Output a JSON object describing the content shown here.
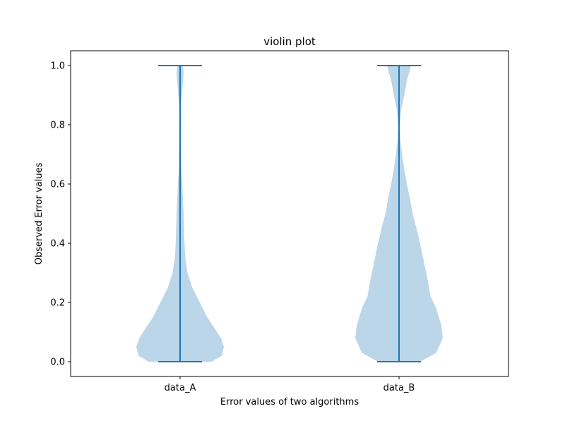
{
  "chart_data": {
    "type": "violin",
    "title": "violin plot",
    "xlabel": "Error values of two algorithms",
    "ylabel": "Observed Error values",
    "categories": [
      "data_A",
      "data_B"
    ],
    "ylim": [
      -0.05,
      1.05
    ],
    "yticks": [
      0.0,
      0.2,
      0.4,
      0.6,
      0.8,
      1.0
    ],
    "ytick_labels": [
      "0.0",
      "0.2",
      "0.4",
      "0.6",
      "0.8",
      "1.0"
    ],
    "grid": false,
    "colors": {
      "body": "#1f77b4",
      "body_alpha": 0.3,
      "lines": "#1f77b4"
    },
    "series": [
      {
        "category": "data_A",
        "min": 0.0,
        "max": 1.0,
        "density_profile": [
          [
            0.0,
            0.72
          ],
          [
            0.02,
            0.95
          ],
          [
            0.05,
            1.0
          ],
          [
            0.08,
            0.93
          ],
          [
            0.11,
            0.8
          ],
          [
            0.15,
            0.62
          ],
          [
            0.2,
            0.45
          ],
          [
            0.25,
            0.28
          ],
          [
            0.3,
            0.17
          ],
          [
            0.35,
            0.12
          ],
          [
            0.4,
            0.1
          ],
          [
            0.5,
            0.08
          ],
          [
            0.6,
            0.05
          ],
          [
            0.65,
            0.03
          ],
          [
            0.75,
            0.02
          ],
          [
            0.85,
            0.015
          ],
          [
            0.9,
            0.04
          ],
          [
            0.95,
            0.07
          ],
          [
            0.98,
            0.08
          ],
          [
            1.0,
            0.06
          ]
        ]
      },
      {
        "category": "data_B",
        "min": 0.0,
        "max": 1.0,
        "density_profile": [
          [
            0.0,
            0.48
          ],
          [
            0.03,
            0.85
          ],
          [
            0.08,
            1.0
          ],
          [
            0.12,
            0.97
          ],
          [
            0.18,
            0.85
          ],
          [
            0.22,
            0.72
          ],
          [
            0.28,
            0.65
          ],
          [
            0.35,
            0.55
          ],
          [
            0.4,
            0.48
          ],
          [
            0.45,
            0.4
          ],
          [
            0.5,
            0.31
          ],
          [
            0.55,
            0.25
          ],
          [
            0.6,
            0.18
          ],
          [
            0.65,
            0.12
          ],
          [
            0.7,
            0.07
          ],
          [
            0.75,
            0.03
          ],
          [
            0.8,
            0.02
          ],
          [
            0.85,
            0.05
          ],
          [
            0.9,
            0.12
          ],
          [
            0.95,
            0.18
          ],
          [
            0.98,
            0.24
          ],
          [
            1.0,
            0.27
          ]
        ]
      }
    ]
  }
}
